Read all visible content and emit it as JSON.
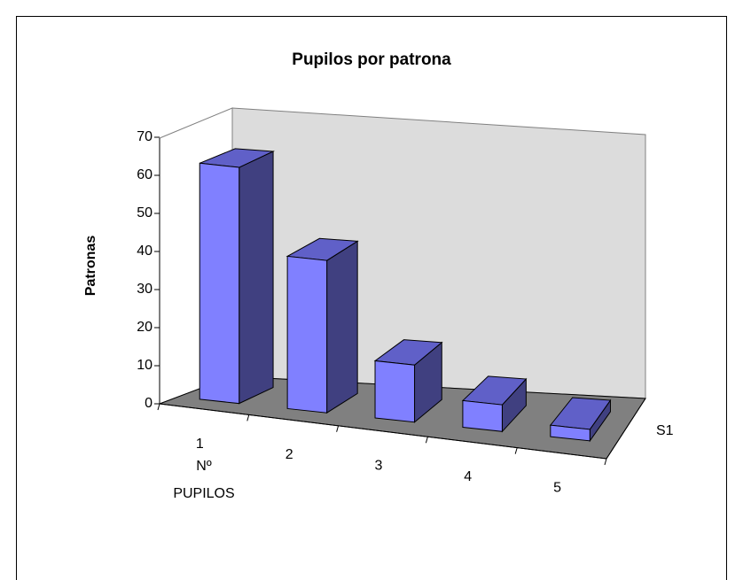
{
  "chart_data": {
    "type": "bar3d",
    "title": "Pupilos por patrona",
    "y_label": "Patronas",
    "x_label": "Nº PUPILOS",
    "categories": [
      "1",
      "2",
      "3",
      "4",
      "5"
    ],
    "series": [
      {
        "name": "S1",
        "color": "#8080ff",
        "values": [
          62,
          40,
          15,
          7,
          3
        ]
      }
    ],
    "ylim": [
      0,
      70
    ],
    "yticks": [
      0,
      10,
      20,
      30,
      40,
      50,
      60,
      70
    ]
  }
}
